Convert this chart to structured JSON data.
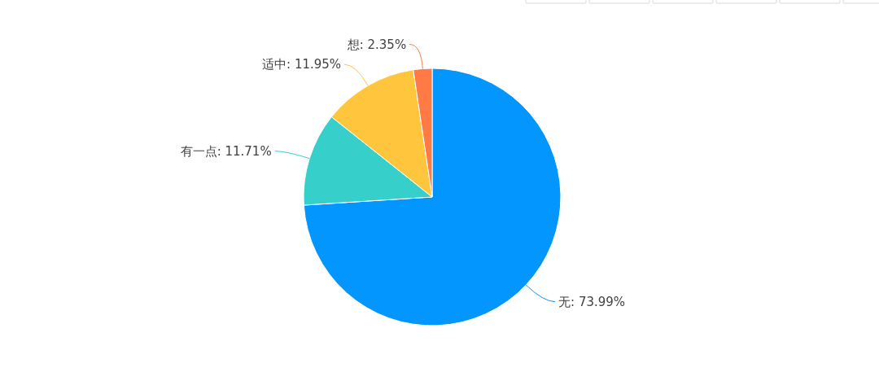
{
  "chart_data": {
    "type": "pie",
    "categories": [
      "无",
      "有一点",
      "适中",
      "想"
    ],
    "values": [
      73.99,
      11.71,
      11.95,
      2.35
    ],
    "colors": [
      "#0396ff",
      "#36cfc9",
      "#ffc53d",
      "#ff7a45"
    ],
    "value_labels": [
      "73.99%",
      "11.71%",
      "11.95%",
      "2.35%"
    ]
  }
}
